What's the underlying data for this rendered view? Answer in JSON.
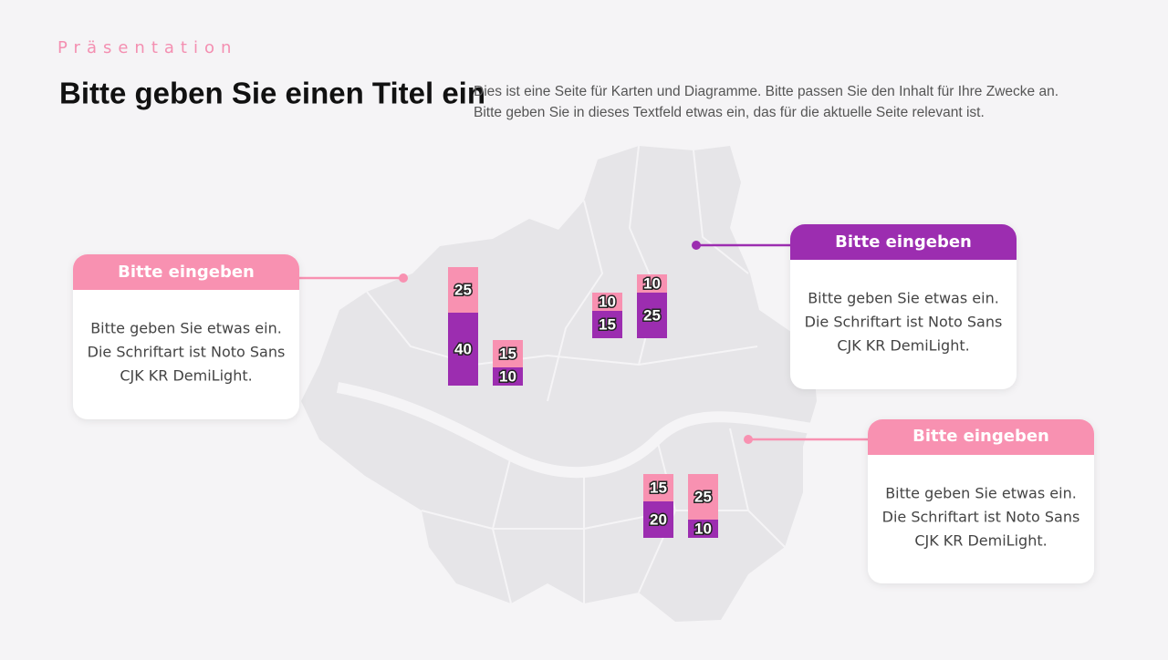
{
  "header": {
    "kicker": "Präsentation",
    "title": "Bitte geben Sie einen Titel ein",
    "description": [
      "Dies ist eine Seite für Karten und Diagramme. Bitte passen Sie den Inhalt für Ihre Zwecke an.",
      "Bitte geben Sie in dieses Textfeld etwas ein, das für die aktuelle Seite relevant ist."
    ]
  },
  "callouts": [
    {
      "title": "Bitte eingeben",
      "lines": [
        "Bitte geben Sie etwas ein.",
        "Die Schriftart ist Noto Sans",
        "CJK KR DemiLight."
      ]
    },
    {
      "title": "Bitte eingeben",
      "lines": [
        "Bitte geben Sie etwas ein.",
        "Die Schriftart ist Noto Sans",
        "CJK KR DemiLight."
      ]
    },
    {
      "title": "Bitte eingeben",
      "lines": [
        "Bitte geben Sie etwas ein.",
        "Die Schriftart ist Noto Sans",
        "CJK KR DemiLight."
      ]
    }
  ],
  "chart_data": [
    {
      "type": "bar",
      "stacked": true,
      "categories": [
        null,
        null
      ],
      "series": [
        {
          "color": "#9c2db0",
          "values": [
            40,
            10
          ]
        },
        {
          "color": "#f891b1",
          "values": [
            25,
            15
          ]
        }
      ]
    },
    {
      "type": "bar",
      "stacked": true,
      "categories": [
        null,
        null
      ],
      "series": [
        {
          "color": "#9c2db0",
          "values": [
            15,
            25
          ]
        },
        {
          "color": "#f891b1",
          "values": [
            10,
            10
          ]
        }
      ]
    },
    {
      "type": "bar",
      "stacked": true,
      "categories": [
        null,
        null
      ],
      "series": [
        {
          "color": "#9c2db0",
          "values": [
            20,
            10
          ]
        },
        {
          "color": "#f891b1",
          "values": [
            15,
            25
          ]
        }
      ]
    }
  ]
}
